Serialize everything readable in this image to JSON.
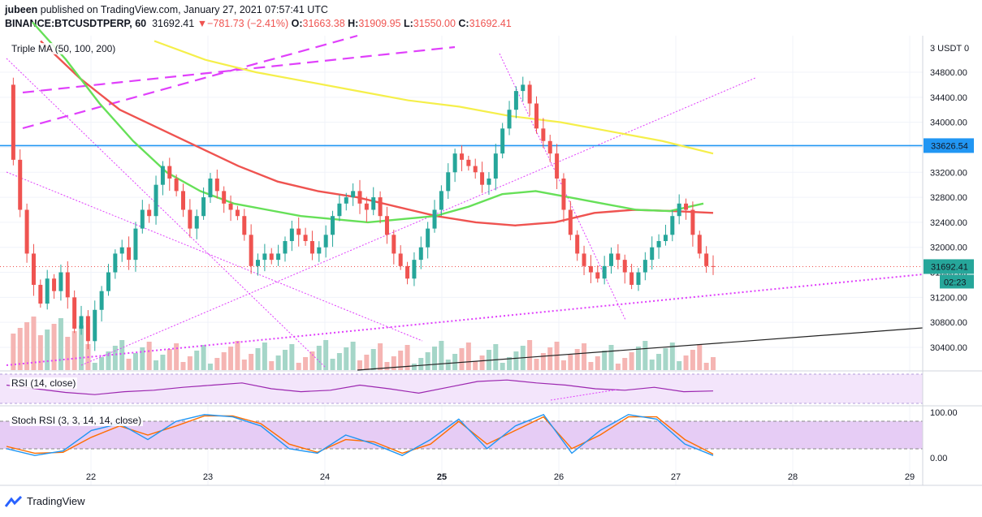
{
  "header": {
    "author": "jubeen",
    "published": "published on TradingView.com, January 27, 2021 07:57:41 UTC",
    "symbol": "BINANCE:BTCUSDTPERP, 60",
    "last": "31692.41",
    "arrow": "▼",
    "change": "−781.73 (−2.41%)",
    "o_label": "O:",
    "o": "31663.38",
    "h_label": "H:",
    "h": "31909.95",
    "l_label": "L:",
    "l": "31550.00",
    "c_label": "C:",
    "c": "31692.41"
  },
  "indicators": {
    "ma_label": "Triple MA (50, 100, 200)",
    "rsi_label": "RSI (14, close)",
    "stoch_label": "Stoch RSI (3, 3, 14, 14, close)"
  },
  "price_axis": {
    "currency": "USDT",
    "ticks": [
      "34800.00",
      "34400.00",
      "34000.00",
      "33600.00",
      "33200.00",
      "32800.00",
      "32400.00",
      "32000.00",
      "31600.00",
      "31200.00",
      "30800.00",
      "30400.00"
    ],
    "hline_label": "33626.54",
    "last_label": "31692.41",
    "countdown": "02:23"
  },
  "stoch_axis": {
    "ticks": [
      "100.00",
      "0.00"
    ]
  },
  "time_axis": {
    "ticks": [
      "22",
      "23",
      "24",
      "25",
      "26",
      "27",
      "28",
      "29"
    ]
  },
  "colors": {
    "up": "#26a69a",
    "down": "#ef5350",
    "ma50": "#66e058",
    "ma100": "#ef5350",
    "ma200": "#f5ef4a",
    "hline": "#2196f3",
    "trend": "#e040fb",
    "rsi": "#9c27b0",
    "stoch_k": "#2196f3",
    "stoch_d": "#ff6d00"
  },
  "chart_data": {
    "type": "candlestick",
    "title": "BINANCE:BTCUSDTPERP, 60",
    "ylabel": "USDT",
    "ylim": [
      30100,
      35200
    ],
    "x_ticks": [
      "22",
      "23",
      "24",
      "25",
      "26",
      "27",
      "28",
      "29"
    ],
    "horizontal_line": 33626.54,
    "close_series": [
      34600,
      33400,
      32600,
      31900,
      31400,
      31100,
      31500,
      31300,
      31600,
      31200,
      30700,
      30900,
      30500,
      31000,
      31300,
      31600,
      31900,
      32000,
      31800,
      32300,
      32600,
      32500,
      33000,
      33300,
      33100,
      32900,
      32600,
      32300,
      32500,
      32800,
      33100,
      32900,
      32700,
      32600,
      32500,
      32200,
      31700,
      31800,
      31900,
      31800,
      31900,
      32100,
      32300,
      32200,
      32100,
      31900,
      32000,
      32200,
      32500,
      32700,
      32800,
      32900,
      32700,
      32600,
      32800,
      32500,
      32200,
      31900,
      31700,
      31500,
      31800,
      32000,
      32300,
      32600,
      32900,
      33200,
      33500,
      33400,
      33300,
      33200,
      33000,
      33100,
      33500,
      33900,
      34200,
      34500,
      34600,
      34300,
      33900,
      33700,
      33500,
      33100,
      32600,
      32200,
      31900,
      31700,
      31600,
      31500,
      31700,
      31900,
      31800,
      31600,
      31400,
      31600,
      31800,
      32000,
      32100,
      32200,
      32500,
      32700,
      32600,
      32200,
      31900,
      31700,
      31692
    ],
    "ma50": [
      35600,
      35000,
      34300,
      33700,
      33200,
      32900,
      32700,
      32600,
      32500,
      32450,
      32400,
      32450,
      32500,
      32650,
      32850,
      32900,
      32800,
      32700,
      32600,
      32580,
      32700
    ],
    "ma100": [
      35300,
      34700,
      34200,
      33900,
      33600,
      33300,
      33050,
      32900,
      32800,
      32650,
      32500,
      32400,
      32350,
      32400,
      32550,
      32600,
      32580,
      32550
    ],
    "ma200": [
      35300,
      35000,
      34800,
      34650,
      34500,
      34350,
      34250,
      34100,
      34000,
      33850,
      33700,
      33500
    ],
    "rsi": [
      55,
      50,
      45,
      42,
      46,
      48,
      52,
      55,
      58,
      50,
      46,
      48,
      55,
      50,
      44,
      52,
      60,
      62,
      58,
      55,
      50,
      48,
      52,
      46,
      47
    ],
    "stoch_k": [
      20,
      5,
      15,
      60,
      75,
      40,
      80,
      95,
      90,
      70,
      20,
      10,
      50,
      30,
      5,
      40,
      85,
      20,
      70,
      95,
      10,
      60,
      95,
      85,
      30,
      5
    ],
    "stoch_d": [
      25,
      10,
      12,
      45,
      70,
      50,
      70,
      92,
      92,
      75,
      30,
      12,
      40,
      35,
      10,
      30,
      80,
      30,
      60,
      90,
      20,
      50,
      90,
      90,
      40,
      8
    ]
  }
}
